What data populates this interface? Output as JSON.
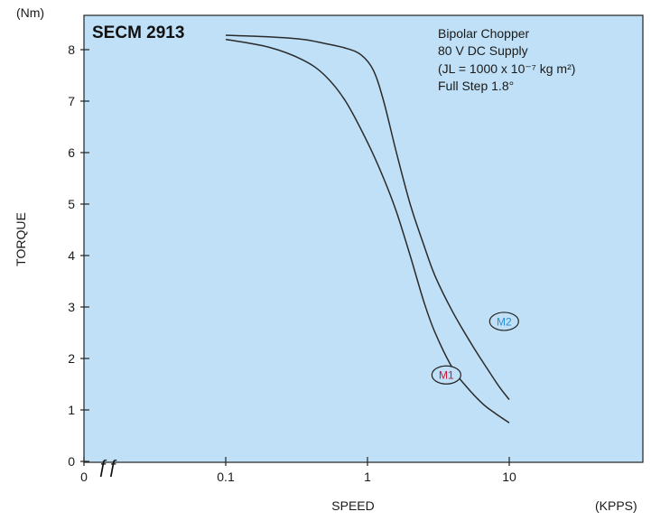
{
  "chart_data": {
    "type": "line",
    "title": "SECM 2913",
    "xlabel": "SPEED",
    "ylabel": "TORQUE",
    "x_unit": "(KPPS)",
    "y_unit": "(Nm)",
    "x_scale": "log",
    "xlim": [
      0.01,
      100
    ],
    "ylim": [
      0,
      8.6
    ],
    "grid": false,
    "background": "#bfe0f6",
    "x_ticks": [
      {
        "value": 0.01,
        "label": "0"
      },
      {
        "value": 0.1,
        "label": "0.1"
      },
      {
        "value": 1,
        "label": "1"
      },
      {
        "value": 10,
        "label": "10"
      }
    ],
    "y_ticks": [
      {
        "value": 0,
        "label": "0"
      },
      {
        "value": 1,
        "label": "1"
      },
      {
        "value": 2,
        "label": "2"
      },
      {
        "value": 3,
        "label": "3"
      },
      {
        "value": 4,
        "label": "4"
      },
      {
        "value": 5,
        "label": "5"
      },
      {
        "value": 6,
        "label": "6"
      },
      {
        "value": 7,
        "label": "7"
      },
      {
        "value": 8,
        "label": "8"
      }
    ],
    "annotations": [
      "Bipolar Chopper",
      "80 V DC Supply",
      "(JL = 1000 x 10⁻⁷ kg m²)",
      "Full Step 1.8°"
    ],
    "axis_break_mark": "ƒƒ",
    "series": [
      {
        "name": "M1",
        "label_color": "#d2143a",
        "label_at": [
          3.6,
          1.68
        ],
        "x": [
          0.1,
          0.2,
          0.35,
          0.5,
          0.7,
          1.0,
          1.3,
          1.6,
          2.0,
          2.5,
          3.0,
          4.0,
          5.0,
          6.5,
          8.0,
          10.0
        ],
        "y": [
          8.2,
          8.05,
          7.8,
          7.5,
          7.0,
          6.2,
          5.5,
          4.85,
          4.0,
          3.1,
          2.5,
          1.8,
          1.45,
          1.12,
          0.93,
          0.75
        ]
      },
      {
        "name": "M2",
        "label_color": "#2a8fd4",
        "label_at": [
          9.2,
          2.72
        ],
        "x": [
          0.1,
          0.2,
          0.35,
          0.5,
          0.7,
          0.9,
          1.1,
          1.3,
          1.6,
          2.0,
          2.5,
          3.0,
          4.0,
          5.5,
          7.0,
          8.5,
          10.0
        ],
        "y": [
          8.28,
          8.25,
          8.2,
          8.12,
          8.03,
          7.9,
          7.6,
          7.0,
          6.0,
          5.0,
          4.2,
          3.6,
          2.9,
          2.25,
          1.8,
          1.45,
          1.2
        ]
      }
    ]
  }
}
